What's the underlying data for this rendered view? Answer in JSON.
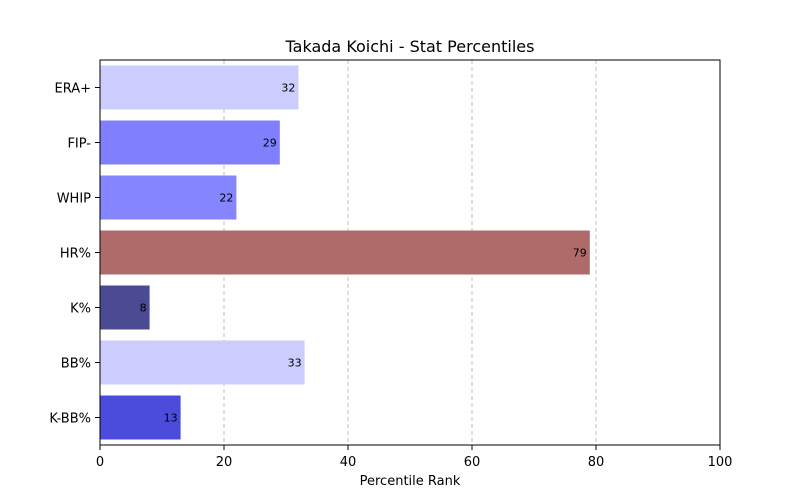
{
  "chart_data": {
    "type": "bar",
    "orientation": "horizontal",
    "title": "Takada Koichi - Stat Percentiles",
    "xlabel": "Percentile Rank",
    "ylabel": "",
    "xlim": [
      0,
      100
    ],
    "xticks": [
      0,
      20,
      40,
      60,
      80,
      100
    ],
    "grid": "x-dashed",
    "categories": [
      "ERA+",
      "FIP-",
      "WHIP",
      "HR%",
      "K%",
      "BB%",
      "K-BB%"
    ],
    "values": [
      32,
      29,
      22,
      79,
      8,
      33,
      13
    ],
    "colors": [
      "#ccccff",
      "#8080ff",
      "#8585ff",
      "#ae6b69",
      "#4b4b94",
      "#ccccff",
      "#4b4bdc"
    ]
  }
}
